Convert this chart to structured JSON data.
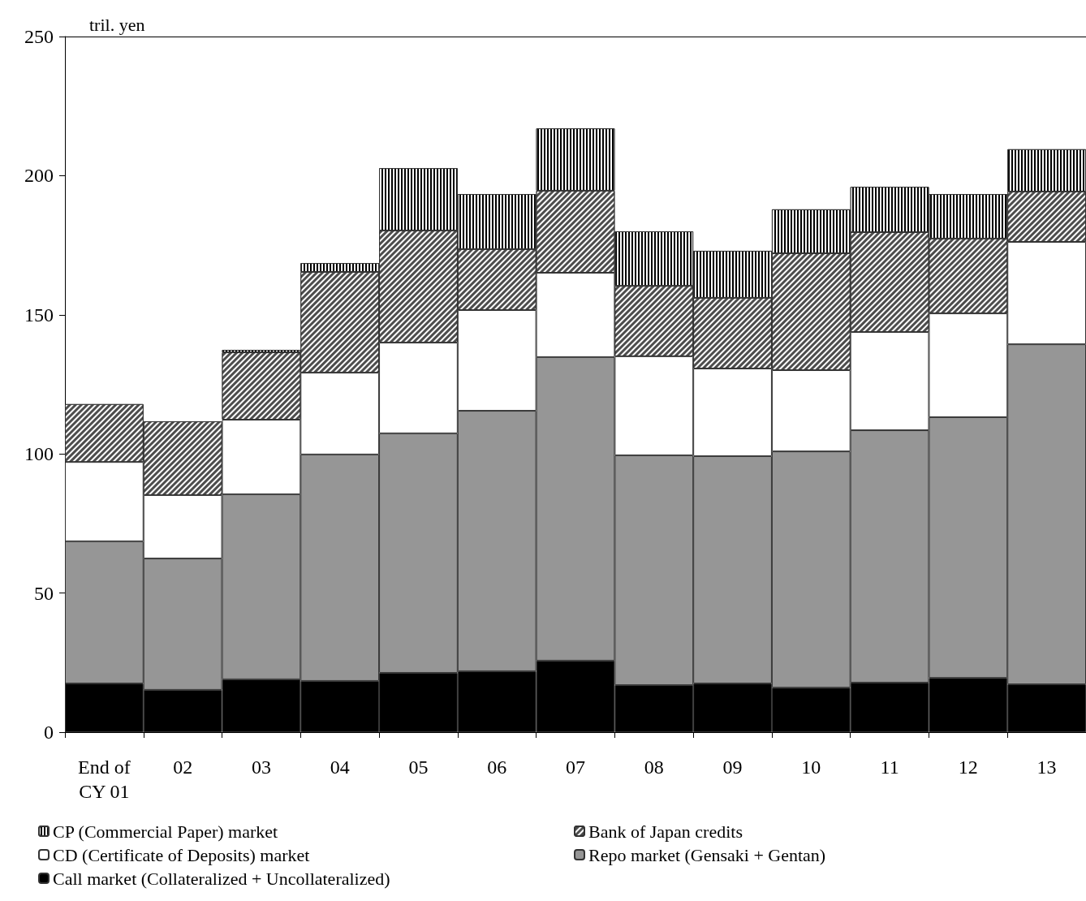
{
  "chart_data": {
    "type": "bar",
    "stacked": true,
    "ylabel": "tril. yen",
    "ylim": [
      0,
      250
    ],
    "yticks": [
      0,
      50,
      100,
      150,
      200,
      250
    ],
    "grid": false,
    "legend": "bottom",
    "categories": [
      "End of\nCY 01",
      "02",
      "03",
      "04",
      "05",
      "06",
      "07",
      "08",
      "09",
      "10",
      "11",
      "12",
      "13"
    ],
    "series": [
      {
        "name": "Call market (Collateralized + Uncollateralized)",
        "color": "#000000",
        "values": [
          17.5,
          15.2,
          19.0,
          18.4,
          21.3,
          21.9,
          25.7,
          16.9,
          17.5,
          16.0,
          17.8,
          19.5,
          17.2
        ]
      },
      {
        "name": "Repo market (Gensaki + Gentan)",
        "color": "#969696",
        "values": [
          51.1,
          47.2,
          66.5,
          81.4,
          86.1,
          93.6,
          109.1,
          82.6,
          81.7,
          84.9,
          90.7,
          93.7,
          122.2
        ]
      },
      {
        "name": "CD (Certificate of Deposits) market",
        "color": "#ffffff",
        "values": [
          28.5,
          22.8,
          26.8,
          29.4,
          32.6,
          36.2,
          30.3,
          35.6,
          31.5,
          29.2,
          35.3,
          37.3,
          36.8
        ]
      },
      {
        "name": "Bank of Japan credits",
        "color": "#4d4d4d",
        "values": [
          20.8,
          26.5,
          24.2,
          36.2,
          40.3,
          21.9,
          29.5,
          25.3,
          25.4,
          42.0,
          35.9,
          26.9,
          18.1
        ]
      },
      {
        "name": "CP (Commercial Paper) market",
        "color": "#000000",
        "values": [
          null,
          null,
          0.9,
          3.2,
          22.4,
          19.8,
          22.4,
          19.6,
          16.9,
          15.8,
          16.3,
          16.0,
          15.2
        ]
      }
    ]
  }
}
